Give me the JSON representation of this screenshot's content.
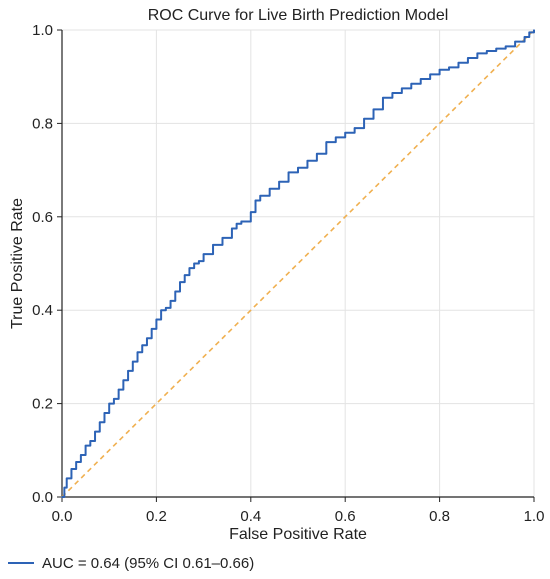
{
  "chart_data": {
    "type": "line",
    "title": "ROC Curve for Live Birth Prediction Model",
    "xlabel": "False Positive Rate",
    "ylabel": "True Positive Rate",
    "xlim": [
      0,
      1
    ],
    "ylim": [
      0,
      1
    ],
    "xticks": [
      "0.0",
      "0.2",
      "0.4",
      "0.6",
      "0.8",
      "1.0"
    ],
    "yticks": [
      "0.0",
      "0.2",
      "0.4",
      "0.6",
      "0.8",
      "1.0"
    ],
    "grid": true,
    "legend_position": "bottom-left",
    "series": [
      {
        "name": "AUC = 0.64 (95% CI 0.61–0.66)",
        "color": "#2d63b6",
        "x": [
          0.0,
          0.005,
          0.01,
          0.02,
          0.03,
          0.04,
          0.05,
          0.06,
          0.07,
          0.08,
          0.09,
          0.1,
          0.11,
          0.12,
          0.13,
          0.14,
          0.15,
          0.16,
          0.17,
          0.18,
          0.19,
          0.2,
          0.21,
          0.22,
          0.23,
          0.24,
          0.25,
          0.26,
          0.27,
          0.28,
          0.29,
          0.3,
          0.32,
          0.34,
          0.36,
          0.37,
          0.38,
          0.4,
          0.41,
          0.42,
          0.44,
          0.46,
          0.48,
          0.5,
          0.52,
          0.54,
          0.56,
          0.58,
          0.6,
          0.62,
          0.64,
          0.66,
          0.68,
          0.7,
          0.72,
          0.74,
          0.76,
          0.78,
          0.8,
          0.82,
          0.84,
          0.86,
          0.88,
          0.9,
          0.92,
          0.94,
          0.96,
          0.98,
          0.99,
          1.0
        ],
        "values": [
          0.0,
          0.02,
          0.04,
          0.06,
          0.075,
          0.09,
          0.11,
          0.12,
          0.14,
          0.16,
          0.18,
          0.2,
          0.21,
          0.23,
          0.25,
          0.27,
          0.29,
          0.31,
          0.325,
          0.34,
          0.36,
          0.38,
          0.4,
          0.405,
          0.42,
          0.44,
          0.46,
          0.475,
          0.49,
          0.5,
          0.505,
          0.52,
          0.54,
          0.555,
          0.575,
          0.585,
          0.59,
          0.61,
          0.635,
          0.645,
          0.66,
          0.675,
          0.695,
          0.705,
          0.72,
          0.735,
          0.76,
          0.77,
          0.78,
          0.79,
          0.81,
          0.83,
          0.855,
          0.865,
          0.875,
          0.885,
          0.895,
          0.905,
          0.915,
          0.92,
          0.93,
          0.94,
          0.95,
          0.955,
          0.96,
          0.965,
          0.975,
          0.985,
          0.995,
          1.0
        ]
      },
      {
        "name": "",
        "color": "#f0b050",
        "x": [
          0,
          1
        ],
        "values": [
          0,
          1
        ]
      }
    ]
  }
}
